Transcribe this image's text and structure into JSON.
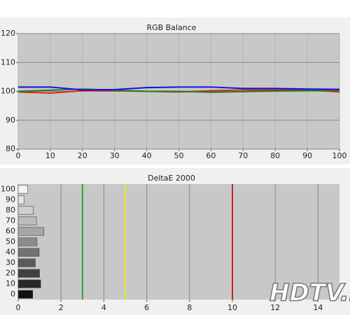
{
  "chart_data": [
    {
      "type": "line",
      "title": "RGB Balance",
      "x": [
        0,
        10,
        20,
        30,
        40,
        50,
        60,
        70,
        80,
        90,
        100
      ],
      "series": [
        {
          "name": "Red",
          "color": "#e02020",
          "values": [
            99.8,
            99.4,
            100.2,
            100.2,
            100.0,
            99.8,
            100.2,
            100.5,
            100.5,
            100.5,
            99.8
          ]
        },
        {
          "name": "Green",
          "color": "#208020",
          "values": [
            100.0,
            100.4,
            100.8,
            100.4,
            100.0,
            100.0,
            99.7,
            99.9,
            100.1,
            100.3,
            100.4
          ]
        },
        {
          "name": "Blue",
          "color": "#1010e0",
          "values": [
            101.5,
            101.5,
            100.5,
            100.6,
            101.3,
            101.5,
            101.5,
            101.0,
            101.0,
            100.8,
            100.7
          ]
        }
      ],
      "xlim": [
        0,
        100
      ],
      "xticks": [
        0,
        10,
        20,
        30,
        40,
        50,
        60,
        70,
        80,
        90,
        100
      ],
      "ylim": [
        80,
        120
      ],
      "yticks": [
        80,
        90,
        100,
        110,
        120
      ],
      "grid": true
    },
    {
      "type": "hbar",
      "title": "DeltaE 2000",
      "categories": [
        "100",
        "90",
        "80",
        "70",
        "60",
        "50",
        "40",
        "30",
        "20",
        "10",
        "0"
      ],
      "values": [
        0.45,
        0.27,
        0.7,
        0.85,
        1.2,
        0.88,
        0.98,
        0.8,
        1.0,
        1.05,
        0.68
      ],
      "colors": [
        "#f4f4f4",
        "#e4e4e4",
        "#cfcfcf",
        "#bcbcbc",
        "#a6a6a6",
        "#8c8c8c",
        "#727272",
        "#5a5a5a",
        "#404040",
        "#282828",
        "#101010"
      ],
      "reference_lines": [
        {
          "value": 3,
          "color": "#30a030"
        },
        {
          "value": 5,
          "color": "#e8e820"
        },
        {
          "value": 10,
          "color": "#d02020"
        }
      ],
      "xlim": [
        0,
        15
      ],
      "xticks": [
        0,
        2,
        4,
        6,
        8,
        10,
        12,
        14
      ],
      "grid": true,
      "watermark": "HDTV.RU"
    }
  ]
}
